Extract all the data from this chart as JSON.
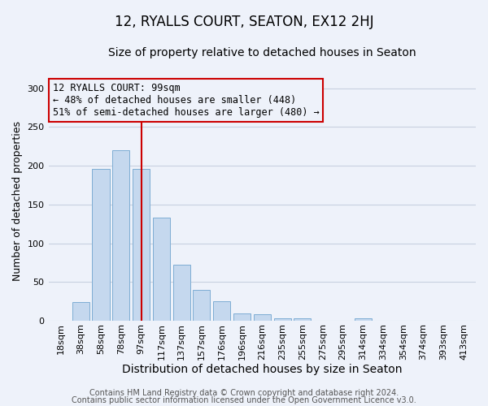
{
  "title": "12, RYALLS COURT, SEATON, EX12 2HJ",
  "subtitle": "Size of property relative to detached houses in Seaton",
  "xlabel": "Distribution of detached houses by size in Seaton",
  "ylabel": "Number of detached properties",
  "bar_labels": [
    "18sqm",
    "38sqm",
    "58sqm",
    "78sqm",
    "97sqm",
    "117sqm",
    "137sqm",
    "157sqm",
    "176sqm",
    "196sqm",
    "216sqm",
    "235sqm",
    "255sqm",
    "275sqm",
    "295sqm",
    "314sqm",
    "334sqm",
    "354sqm",
    "374sqm",
    "393sqm",
    "413sqm"
  ],
  "bar_values": [
    0,
    24,
    196,
    220,
    196,
    133,
    72,
    40,
    25,
    10,
    9,
    3,
    3,
    0,
    0,
    3,
    0,
    0,
    0,
    0,
    0
  ],
  "bar_color": "#c5d8ee",
  "bar_edgecolor": "#7eadd4",
  "vline_x": 4,
  "vline_color": "#cc0000",
  "annotation_title": "12 RYALLS COURT: 99sqm",
  "annotation_line1": "← 48% of detached houses are smaller (448)",
  "annotation_line2": "51% of semi-detached houses are larger (480) →",
  "annotation_box_edgecolor": "#cc0000",
  "ylim": [
    0,
    310
  ],
  "yticks": [
    0,
    50,
    100,
    150,
    200,
    250,
    300
  ],
  "footer1": "Contains HM Land Registry data © Crown copyright and database right 2024.",
  "footer2": "Contains public sector information licensed under the Open Government Licence v3.0.",
  "background_color": "#eef2fa",
  "grid_color": "#c8d0e0",
  "title_fontsize": 12,
  "subtitle_fontsize": 10,
  "xlabel_fontsize": 10,
  "ylabel_fontsize": 9,
  "tick_fontsize": 8,
  "footer_fontsize": 7,
  "annotation_fontsize": 8.5
}
